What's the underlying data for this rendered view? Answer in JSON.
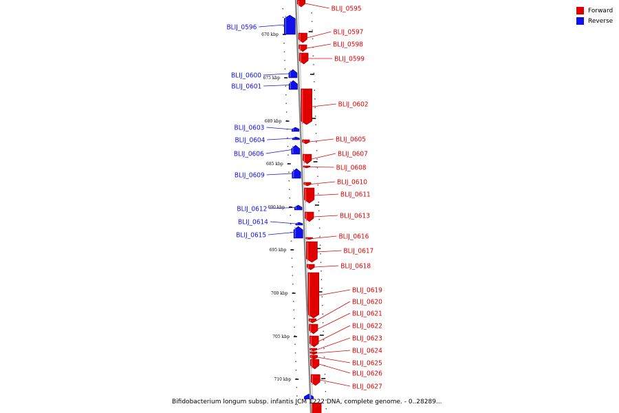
{
  "colors": {
    "forward": "#e00000",
    "reverse": "#1010e8",
    "backbone": "#888888"
  },
  "legend": [
    {
      "label": "Forward",
      "color": "#e00000"
    },
    {
      "label": "Reverse",
      "color": "#1010e8"
    }
  ],
  "caption": "Bifidobacterium longum subsp. infantis JCM 1222 DNA, complete genome. - 0..28289...",
  "ticks": [
    {
      "label": "670 kbp"
    },
    {
      "label": "675 kbp"
    },
    {
      "label": "680 kbp"
    },
    {
      "label": "685 kbp"
    },
    {
      "label": "690 kbp"
    },
    {
      "label": "695 kbp"
    },
    {
      "label": "700 kbp"
    },
    {
      "label": "705 kbp"
    },
    {
      "label": "710 kbp"
    }
  ],
  "genes": [
    {
      "name": "BLIJ_0595",
      "strand": "forward"
    },
    {
      "name": "BLIJ_0596",
      "strand": "reverse"
    },
    {
      "name": "BLIJ_0597",
      "strand": "forward"
    },
    {
      "name": "BLIJ_0598",
      "strand": "forward"
    },
    {
      "name": "BLIJ_0599",
      "strand": "forward"
    },
    {
      "name": "BLIJ_0600",
      "strand": "reverse"
    },
    {
      "name": "BLIJ_0601",
      "strand": "reverse"
    },
    {
      "name": "BLIJ_0602",
      "strand": "forward"
    },
    {
      "name": "BLIJ_0603",
      "strand": "reverse"
    },
    {
      "name": "BLIJ_0604",
      "strand": "reverse"
    },
    {
      "name": "BLIJ_0605",
      "strand": "forward"
    },
    {
      "name": "BLIJ_0606",
      "strand": "reverse"
    },
    {
      "name": "BLIJ_0607",
      "strand": "forward"
    },
    {
      "name": "BLIJ_0608",
      "strand": "forward"
    },
    {
      "name": "BLIJ_0609",
      "strand": "reverse"
    },
    {
      "name": "BLIJ_0610",
      "strand": "forward"
    },
    {
      "name": "BLIJ_0611",
      "strand": "forward"
    },
    {
      "name": "BLIJ_0612",
      "strand": "reverse"
    },
    {
      "name": "BLIJ_0613",
      "strand": "forward"
    },
    {
      "name": "BLIJ_0614",
      "strand": "reverse"
    },
    {
      "name": "BLIJ_0615",
      "strand": "reverse"
    },
    {
      "name": "BLIJ_0616",
      "strand": "forward"
    },
    {
      "name": "BLIJ_0617",
      "strand": "forward"
    },
    {
      "name": "BLIJ_0618",
      "strand": "forward"
    },
    {
      "name": "BLIJ_0619",
      "strand": "forward"
    },
    {
      "name": "BLIJ_0620",
      "strand": "forward"
    },
    {
      "name": "BLIJ_0621",
      "strand": "forward"
    },
    {
      "name": "BLIJ_0622",
      "strand": "forward"
    },
    {
      "name": "BLIJ_0623",
      "strand": "forward"
    },
    {
      "name": "BLIJ_0624",
      "strand": "forward"
    },
    {
      "name": "BLIJ_0625",
      "strand": "forward"
    },
    {
      "name": "BLIJ_0626",
      "strand": "forward"
    },
    {
      "name": "BLIJ_0627",
      "strand": "forward"
    }
  ]
}
